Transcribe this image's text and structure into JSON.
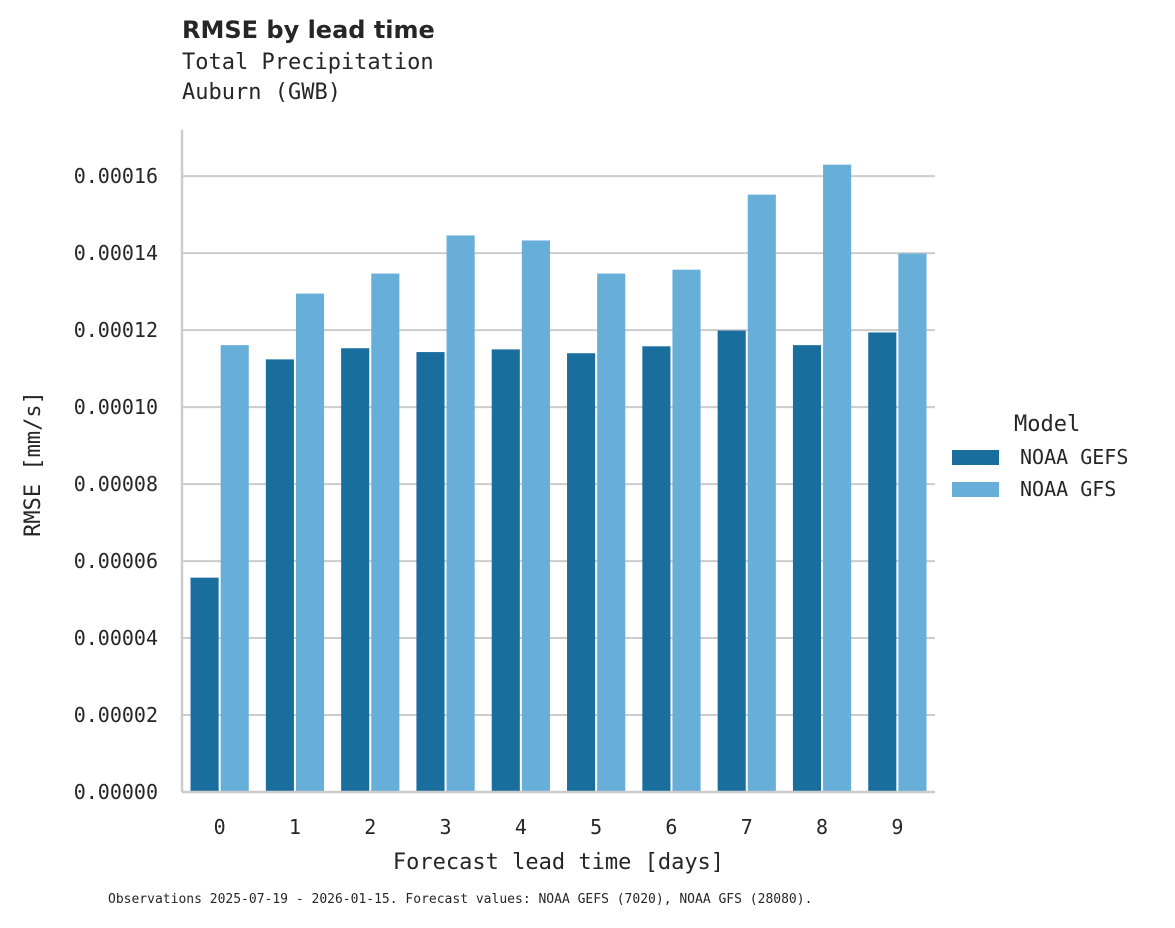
{
  "header": {
    "title": "RMSE by lead time",
    "subtitle_line1": "Total Precipitation",
    "subtitle_line2": "Auburn (GWB)"
  },
  "legend": {
    "title": "Model",
    "items": [
      {
        "label": "NOAA GEFS",
        "color": "#1a6e9e"
      },
      {
        "label": "NOAA GFS",
        "color": "#67aed8"
      }
    ]
  },
  "footnote": "Observations 2025-07-19 - 2026-01-15. Forecast values: NOAA GEFS (7020), NOAA GFS (28080).",
  "chart_data": {
    "type": "bar",
    "title": "RMSE by lead time",
    "subtitle": "Total Precipitation — Auburn (GWB)",
    "xlabel": "Forecast lead time [days]",
    "ylabel": "RMSE [mm/s]",
    "categories": [
      "0",
      "1",
      "2",
      "3",
      "4",
      "5",
      "6",
      "7",
      "8",
      "9"
    ],
    "series": [
      {
        "name": "NOAA GEFS",
        "color": "#1a6e9e",
        "values": [
          5.57e-05,
          0.0001124,
          0.0001153,
          0.0001143,
          0.000115,
          0.000114,
          0.0001158,
          0.0001199,
          0.0001161,
          0.0001194
        ]
      },
      {
        "name": "NOAA GFS",
        "color": "#67aed8",
        "values": [
          0.0001161,
          0.0001295,
          0.0001347,
          0.0001446,
          0.0001433,
          0.0001347,
          0.0001357,
          0.0001552,
          0.000163,
          0.0001399
        ]
      }
    ],
    "yticks": [
      "0.00000",
      "0.00002",
      "0.00004",
      "0.00006",
      "0.00008",
      "0.00010",
      "0.00012",
      "0.00014",
      "0.00016"
    ],
    "ylim": [
      0,
      0.000172
    ],
    "grid": "horizontal",
    "legend_position": "right",
    "legend_title": "Model",
    "footnote": "Observations 2025-07-19 - 2026-01-15. Forecast values: NOAA GEFS (7020), NOAA GFS (28080)."
  }
}
